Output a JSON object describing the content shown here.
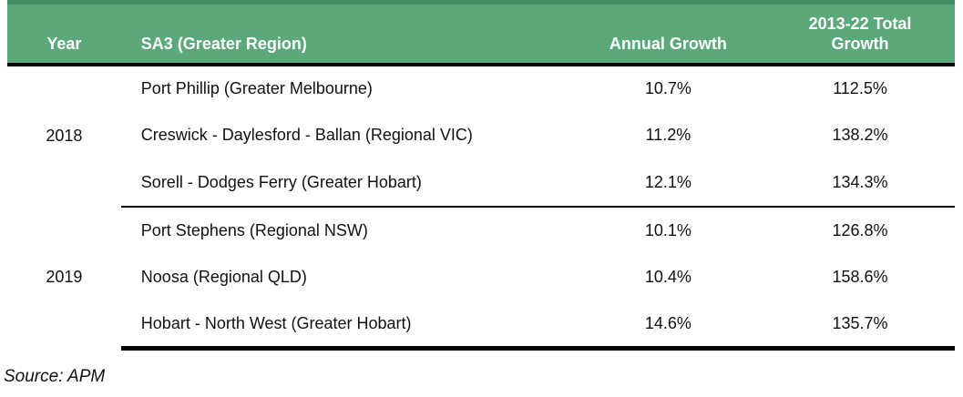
{
  "chart_data": {
    "type": "table",
    "columns": [
      "Year",
      "SA3 (Greater Region)",
      "Annual Growth",
      "2013-22 Total Growth"
    ],
    "groups": [
      {
        "year": "2018",
        "rows": [
          {
            "region": "Port Phillip (Greater Melbourne)",
            "annual_growth": "10.7%",
            "total_growth": "112.5%"
          },
          {
            "region": "Creswick - Daylesford - Ballan (Regional VIC)",
            "annual_growth": "11.2%",
            "total_growth": "138.2%"
          },
          {
            "region": "Sorell - Dodges Ferry (Greater Hobart)",
            "annual_growth": "12.1%",
            "total_growth": "134.3%"
          }
        ]
      },
      {
        "year": "2019",
        "rows": [
          {
            "region": "Port Stephens (Regional NSW)",
            "annual_growth": "10.1%",
            "total_growth": "126.8%"
          },
          {
            "region": "Noosa (Regional QLD)",
            "annual_growth": "10.4%",
            "total_growth": "158.6%"
          },
          {
            "region": "Hobart - North West (Greater Hobart)",
            "annual_growth": "14.6%",
            "total_growth": "135.7%"
          }
        ]
      }
    ],
    "source": "Source: APM",
    "layout": {
      "header_position": "top",
      "grid": "horizontal-rules-only"
    }
  },
  "colors": {
    "header_bg": "#5BA97B",
    "header_top_stripe": "#448F66",
    "header_text": "#FFFFFF",
    "rule_color": "#000000",
    "body_text": "#111111",
    "page_bg": "#FFFFFF"
  }
}
